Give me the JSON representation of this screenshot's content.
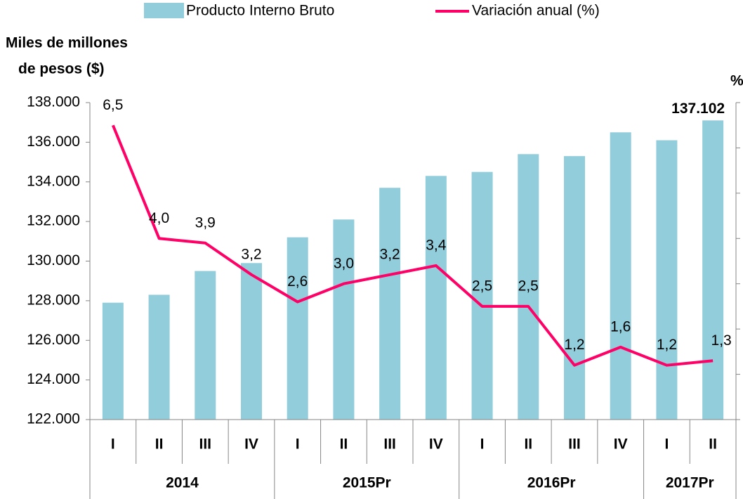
{
  "chart_data": {
    "type": "bar-line",
    "y_label": [
      "Miles de millones",
      "de pesos ($)"
    ],
    "y2_label": "%",
    "groups": [
      {
        "label": "2014",
        "categories": [
          "I",
          "II",
          "III",
          "IV"
        ]
      },
      {
        "label": "2015Pr",
        "categories": [
          "I",
          "II",
          "III",
          "IV"
        ]
      },
      {
        "label": "2016Pr",
        "categories": [
          "I",
          "II",
          "III",
          "IV"
        ]
      },
      {
        "label": "2017Pr",
        "categories": [
          "I",
          "II"
        ]
      }
    ],
    "series": [
      {
        "name": "Producto Interno Bruto",
        "type": "bar",
        "color": "#92cddc",
        "values": [
          127900,
          128300,
          129500,
          129900,
          131200,
          132100,
          133700,
          134300,
          134500,
          135400,
          135300,
          136500,
          136100,
          137102
        ],
        "value_labels": [
          null,
          null,
          null,
          null,
          null,
          null,
          null,
          null,
          null,
          null,
          null,
          null,
          null,
          "137.102"
        ]
      },
      {
        "name": "Variación anual (%)",
        "type": "line",
        "axis": "y2",
        "color": "#ff0066",
        "values": [
          6.5,
          4.0,
          3.9,
          3.2,
          2.6,
          3.0,
          3.2,
          3.4,
          2.5,
          2.5,
          1.2,
          1.6,
          1.2,
          1.3
        ],
        "value_labels": [
          "6,5",
          "4,0",
          "3,9",
          "3,2",
          "2,6",
          "3,0",
          "3,2",
          "3,4",
          "2,5",
          "2,5",
          "1,2",
          "1,6",
          "1,2",
          "1,3"
        ]
      }
    ],
    "ylim": [
      122000,
      138000
    ],
    "yticks": [
      {
        "value": 122000,
        "label": "122.000"
      },
      {
        "value": 124000,
        "label": "124.000"
      },
      {
        "value": 126000,
        "label": "126.000"
      },
      {
        "value": 128000,
        "label": "128.000"
      },
      {
        "value": 130000,
        "label": "130.000"
      },
      {
        "value": 132000,
        "label": "132.000"
      },
      {
        "value": 134000,
        "label": "134.000"
      },
      {
        "value": 136000,
        "label": "136.000"
      },
      {
        "value": 138000,
        "label": "138.000"
      }
    ],
    "y2lim": [
      0,
      7
    ],
    "y2ticks": [
      0,
      1,
      2,
      3,
      4,
      5,
      6,
      7
    ],
    "grid": false
  }
}
